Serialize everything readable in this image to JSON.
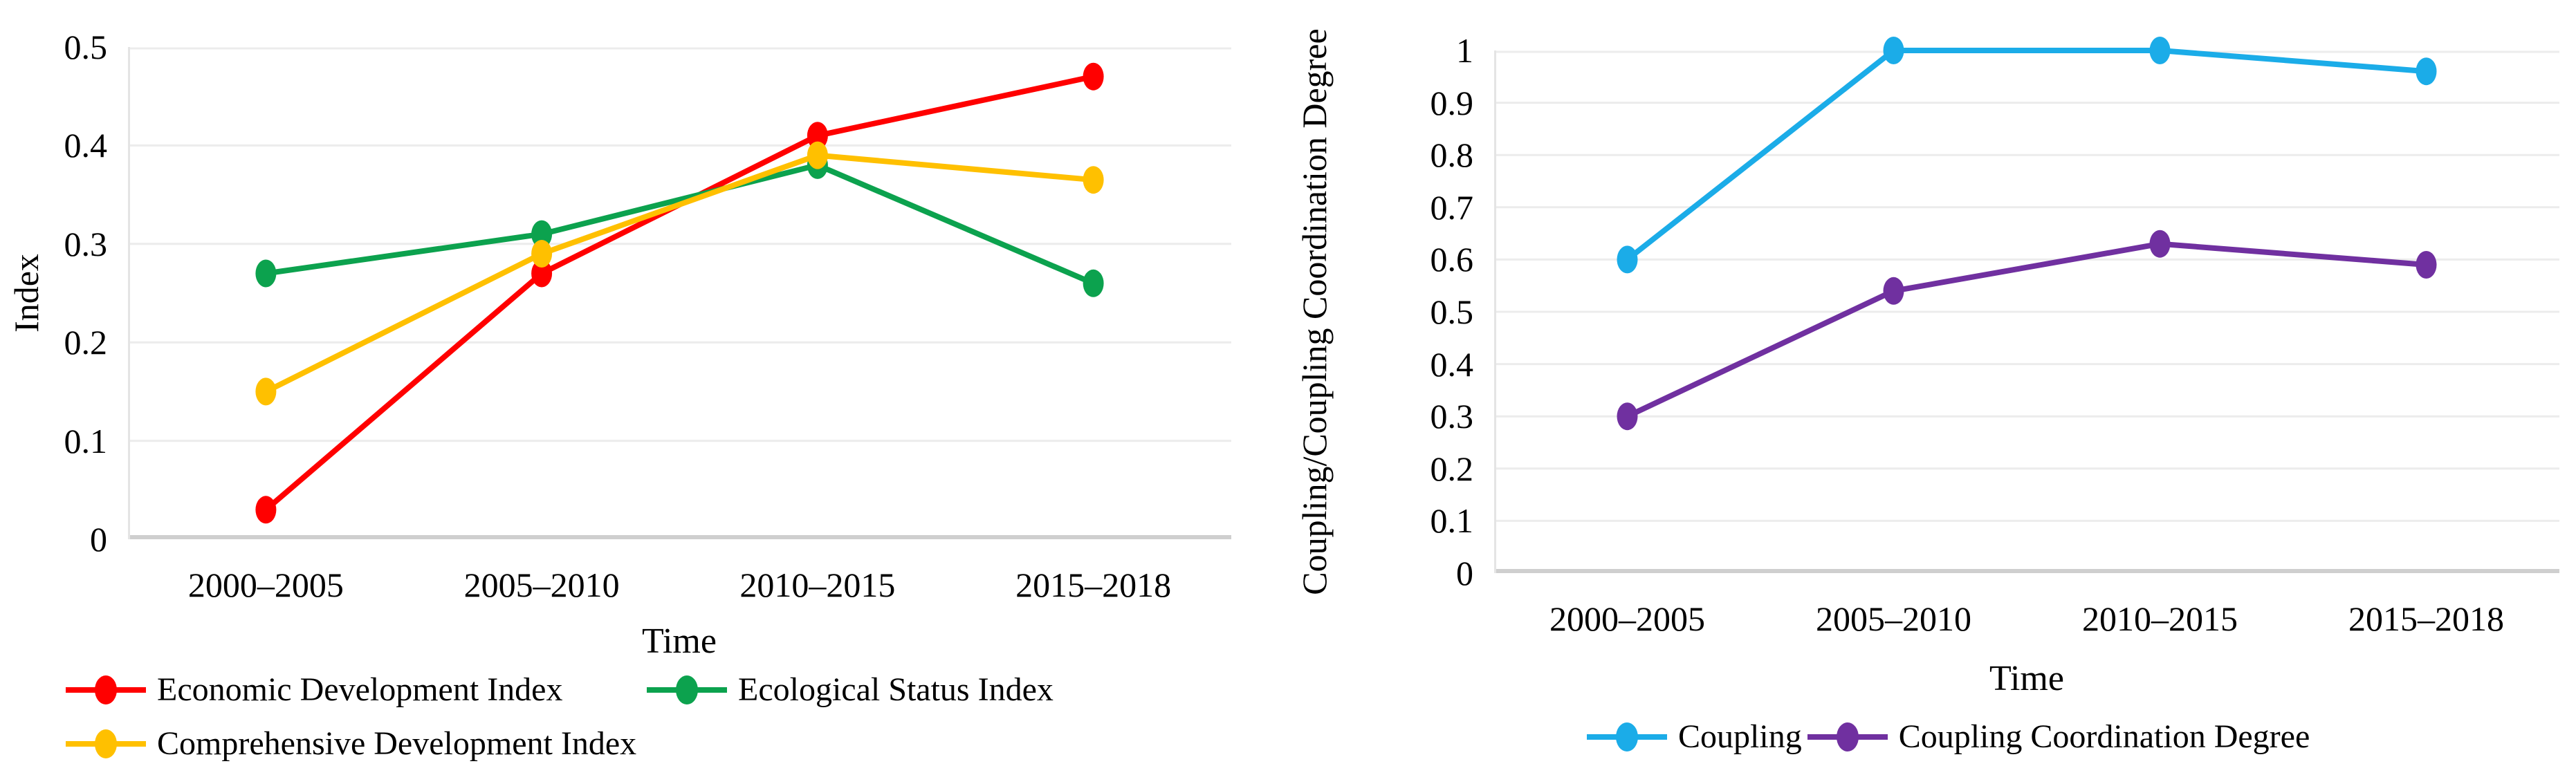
{
  "accent_colors": {
    "red": "#FF0000",
    "green": "#0CA24E",
    "gold": "#FFC000",
    "sky_blue": "#1BACE8",
    "purple": "#7030A0",
    "gridline": "#ececec",
    "axis_line": "#cfcfcf"
  },
  "chart_data": [
    {
      "id": "index-chart",
      "type": "line",
      "title": "",
      "xlabel": "Time",
      "ylabel": "Index",
      "categories": [
        "2000–2005",
        "2005–2010",
        "2010–2015",
        "2015–2018"
      ],
      "ylim": [
        0,
        0.5
      ],
      "yticks": [
        "0",
        "0.1",
        "0.2",
        "0.3",
        "0.4",
        "0.5"
      ],
      "grid": true,
      "legend_position": "bottom-left-two-rows",
      "marker": "circle",
      "series": [
        {
          "name": "Economic Development Index",
          "color": "#FF0000",
          "values": [
            0.03,
            0.27,
            0.41,
            0.47
          ]
        },
        {
          "name": "Ecological Status Index",
          "color": "#0CA24E",
          "values": [
            0.27,
            0.31,
            0.38,
            0.26
          ]
        },
        {
          "name": "Comprehensive Development Index",
          "color": "#FFC000",
          "values": [
            0.15,
            0.29,
            0.39,
            0.365
          ]
        }
      ]
    },
    {
      "id": "coupling-chart",
      "type": "line",
      "title": "",
      "xlabel": "Time",
      "ylabel": "Coupling/Coupling Coordination Degree",
      "categories": [
        "2000–2005",
        "2005–2010",
        "2010–2015",
        "2015–2018"
      ],
      "ylim": [
        0,
        1
      ],
      "yticks": [
        "0",
        "0.1",
        "0.2",
        "0.3",
        "0.4",
        "0.5",
        "0.6",
        "0.7",
        "0.8",
        "0.9",
        "1"
      ],
      "grid": true,
      "legend_position": "bottom-center-one-row",
      "marker": "circle",
      "series": [
        {
          "name": "Coupling",
          "color": "#1BACE8",
          "values": [
            0.6,
            1.0,
            1.0,
            0.96
          ]
        },
        {
          "name": "Coupling Coordination Degree",
          "color": "#7030A0",
          "values": [
            0.3,
            0.54,
            0.63,
            0.59
          ]
        }
      ]
    }
  ]
}
